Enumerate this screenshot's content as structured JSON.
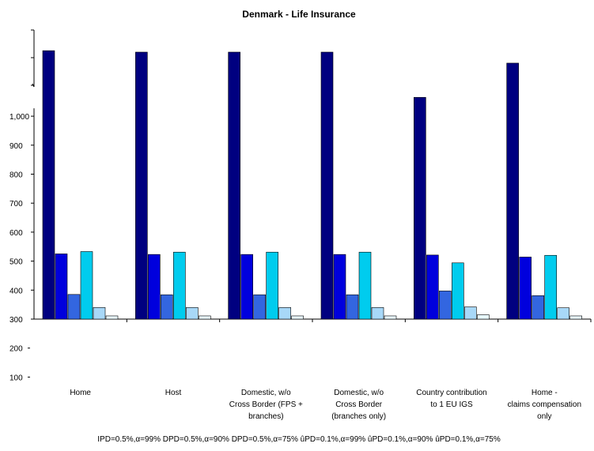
{
  "chart_data": {
    "type": "bar",
    "title": "Denmark - Life Insurance",
    "xlabel": "",
    "ylabel": "",
    "categories": [
      "Home",
      "Host",
      "Domestic, w/o Cross Border (FPS + branches)",
      "Domestic, w/o Cross Border (branches only)",
      "Country contribution to 1 EU IGS",
      "Home - claims compensation only"
    ],
    "category_lines": [
      [
        "Home"
      ],
      [
        "Host"
      ],
      [
        "Domestic, w/o",
        "Cross Border (FPS +",
        "branches)"
      ],
      [
        "Domestic, w/o",
        "Cross Border",
        "(branches only)"
      ],
      [
        "Country contribution",
        "to 1 EU IGS"
      ],
      [
        "Home -",
        "claims compensation",
        "only"
      ]
    ],
    "y_ticks": [
      "1,000",
      "900",
      "800",
      "700",
      "600",
      "500",
      "400",
      "300",
      "200",
      "100"
    ],
    "y_tick_values": [
      1000,
      900,
      800,
      700,
      600,
      500,
      400,
      300,
      200,
      100
    ],
    "ylim": [
      300,
      1255
    ],
    "axis_break": true,
    "grid": false,
    "legend_position": "bottom",
    "legend_text": "IPD=0.5%,α=99% DPD=0.5%,α=90% DPD=0.5%,α=75% ûPD=0.1%,α=99% ûPD=0.1%,α=90% ûPD=0.1%,α=75%",
    "series": [
      {
        "values": [
          1226,
          1221,
          1221,
          1221,
          1065,
          1183
        ]
      },
      {
        "values": [
          525,
          523,
          523,
          523,
          521,
          514
        ]
      },
      {
        "values": [
          385,
          384,
          384,
          384,
          397,
          381
        ]
      },
      {
        "values": [
          533,
          531,
          531,
          531,
          494,
          520
        ]
      },
      {
        "values": [
          340,
          340,
          340,
          340,
          342,
          339
        ]
      },
      {
        "values": [
          311,
          311,
          311,
          311,
          315,
          311
        ]
      }
    ],
    "colors": [
      "#000080",
      "#0000dd",
      "#3366e0",
      "#00ccee",
      "#a8d8f8",
      "#e8f8ff"
    ],
    "bar_stroke": "#000000"
  }
}
